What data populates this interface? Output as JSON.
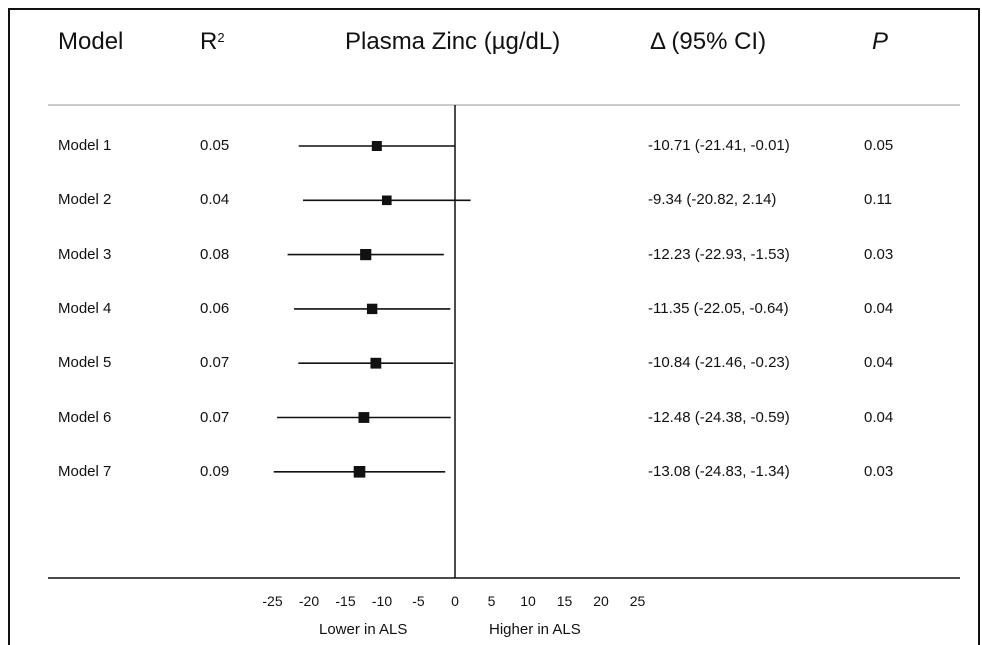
{
  "headers": {
    "model": "Model",
    "r2_base": "R",
    "r2_sup": "2",
    "plot": "Plasma Zinc (µg/dL)",
    "delta": "Δ (95% CI)",
    "p": "P"
  },
  "rows": [
    {
      "model": "Model 1",
      "r2": "0.05",
      "ci_text": "-10.71 (-21.41, -0.01)",
      "p": "0.05"
    },
    {
      "model": "Model 2",
      "r2": "0.04",
      "ci_text": "-9.34 (-20.82, 2.14)",
      "p": "0.11"
    },
    {
      "model": "Model 3",
      "r2": "0.08",
      "ci_text": "-12.23 (-22.93, -1.53)",
      "p": "0.03"
    },
    {
      "model": "Model 4",
      "r2": "0.06",
      "ci_text": "-11.35 (-22.05, -0.64)",
      "p": "0.04"
    },
    {
      "model": "Model 5",
      "r2": "0.07",
      "ci_text": "-10.84 (-21.46, -0.23)",
      "p": "0.04"
    },
    {
      "model": "Model 6",
      "r2": "0.07",
      "ci_text": "-12.48 (-24.38, -0.59)",
      "p": "0.04"
    },
    {
      "model": "Model 7",
      "r2": "0.09",
      "ci_text": "-13.08 (-24.83, -1.34)",
      "p": "0.03"
    }
  ],
  "axis": {
    "lower_label": "Lower in ALS",
    "higher_label": "Higher in ALS"
  },
  "chart_data": {
    "type": "scatter",
    "title": "Plasma Zinc (µg/dL)",
    "xlabel": "",
    "ylabel": "",
    "xlim": [
      -25,
      25
    ],
    "xticks": [
      -25,
      -20,
      -15,
      -10,
      -5,
      0,
      5,
      10,
      15,
      20,
      25
    ],
    "reference_line": 0,
    "categories": [
      "Model 1",
      "Model 2",
      "Model 3",
      "Model 4",
      "Model 5",
      "Model 6",
      "Model 7"
    ],
    "estimates": [
      -10.71,
      -9.34,
      -12.23,
      -11.35,
      -10.84,
      -12.48,
      -13.08
    ],
    "ci_lower": [
      -21.41,
      -20.82,
      -22.93,
      -22.05,
      -21.46,
      -24.38,
      -24.83
    ],
    "ci_upper": [
      -0.01,
      2.14,
      -1.53,
      -0.64,
      -0.23,
      -0.59,
      -1.34
    ],
    "r2": [
      0.05,
      0.04,
      0.08,
      0.06,
      0.07,
      0.07,
      0.09
    ],
    "p_values": [
      0.05,
      0.11,
      0.03,
      0.04,
      0.04,
      0.04,
      0.03
    ]
  }
}
